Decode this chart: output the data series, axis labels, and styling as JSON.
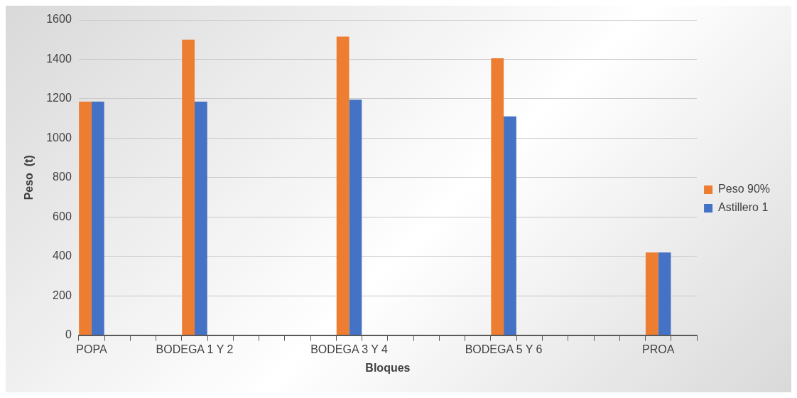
{
  "chart_data": {
    "type": "bar",
    "xlabel": "Bloques",
    "ylabel": "Peso  (t)",
    "categories": [
      "POPA",
      null,
      null,
      null,
      "BODEGA 1 Y 2",
      null,
      null,
      null,
      null,
      null,
      "BODEGA 3 Y 4",
      null,
      null,
      null,
      null,
      null,
      "BODEGA 5 Y 6",
      null,
      null,
      null,
      null,
      null,
      "PROA",
      null
    ],
    "series": [
      {
        "name": "Peso 90%",
        "color": "#ed7d31",
        "values": [
          1185,
          null,
          null,
          null,
          1500,
          null,
          null,
          null,
          null,
          null,
          1515,
          null,
          null,
          null,
          null,
          null,
          1405,
          null,
          null,
          null,
          null,
          null,
          420,
          null
        ]
      },
      {
        "name": "Astillero 1",
        "color": "#4472c4",
        "values": [
          1185,
          null,
          null,
          null,
          1185,
          null,
          null,
          null,
          null,
          null,
          1195,
          null,
          null,
          null,
          null,
          null,
          1110,
          null,
          null,
          null,
          null,
          null,
          420,
          null
        ]
      }
    ],
    "ylim": [
      0,
      1600
    ],
    "yticks": [
      0,
      200,
      400,
      600,
      800,
      1000,
      1200,
      1400,
      1600
    ],
    "grid": "y",
    "legend": "right"
  }
}
